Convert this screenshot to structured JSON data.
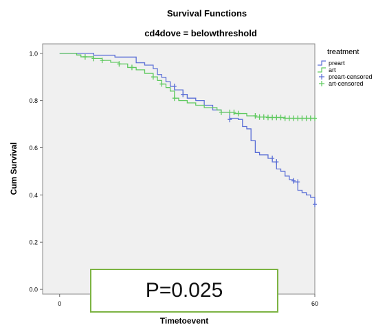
{
  "chart_data": {
    "type": "line",
    "title": "Survival Functions",
    "subtitle": "cd4dove = belowthreshold",
    "xlabel": "Timetoevent",
    "ylabel": "Cum Survival",
    "xlim": [
      -4,
      60
    ],
    "ylim": [
      -0.02,
      1.04
    ],
    "x_ticks": [
      0,
      60
    ],
    "x_tick_labels": [
      "0",
      "60"
    ],
    "y_ticks": [
      0.0,
      0.2,
      0.4,
      0.6,
      0.8,
      1.0
    ],
    "y_tick_labels": [
      "0.0",
      "0.2",
      "0.4",
      "0.6",
      "0.8",
      "1.0"
    ],
    "grid": false,
    "legend_title": "treatment",
    "legend_position": "top-right outside",
    "legend": [
      "preart",
      "art",
      "preart-censored",
      "art-censored"
    ],
    "annotation": "P=0.025",
    "series": [
      {
        "name": "preart",
        "color": "#5b6fd6",
        "steps": [
          [
            0,
            1.0
          ],
          [
            8,
            0.992
          ],
          [
            13,
            0.984
          ],
          [
            18,
            0.96
          ],
          [
            20,
            0.95
          ],
          [
            22,
            0.935
          ],
          [
            23,
            0.91
          ],
          [
            24,
            0.898
          ],
          [
            25,
            0.88
          ],
          [
            26,
            0.86
          ],
          [
            27,
            0.845
          ],
          [
            29,
            0.826
          ],
          [
            30,
            0.81
          ],
          [
            32,
            0.8
          ],
          [
            34,
            0.78
          ],
          [
            36,
            0.76
          ],
          [
            38,
            0.75
          ],
          [
            40,
            0.725
          ],
          [
            42,
            0.72
          ],
          [
            43,
            0.69
          ],
          [
            44,
            0.68
          ],
          [
            45,
            0.63
          ],
          [
            46,
            0.58
          ],
          [
            47,
            0.57
          ],
          [
            49,
            0.555
          ],
          [
            50,
            0.54
          ],
          [
            51,
            0.51
          ],
          [
            52,
            0.5
          ],
          [
            53,
            0.48
          ],
          [
            54,
            0.465
          ],
          [
            55,
            0.455
          ],
          [
            56,
            0.42
          ],
          [
            57,
            0.41
          ],
          [
            58,
            0.4
          ],
          [
            59,
            0.39
          ],
          [
            60,
            0.36
          ]
        ],
        "censored": [
          [
            27,
            0.86
          ],
          [
            29,
            0.826
          ],
          [
            40,
            0.72
          ],
          [
            50,
            0.555
          ],
          [
            51,
            0.54
          ],
          [
            55,
            0.46
          ],
          [
            56,
            0.455
          ],
          [
            60,
            0.36
          ]
        ]
      },
      {
        "name": "art",
        "color": "#5fc95f",
        "steps": [
          [
            0,
            1.0
          ],
          [
            4,
            0.993
          ],
          [
            5,
            0.985
          ],
          [
            8,
            0.978
          ],
          [
            10,
            0.97
          ],
          [
            12,
            0.962
          ],
          [
            14,
            0.955
          ],
          [
            16,
            0.94
          ],
          [
            18,
            0.93
          ],
          [
            20,
            0.915
          ],
          [
            22,
            0.9
          ],
          [
            23,
            0.885
          ],
          [
            24,
            0.87
          ],
          [
            25,
            0.855
          ],
          [
            26,
            0.84
          ],
          [
            27,
            0.81
          ],
          [
            28,
            0.8
          ],
          [
            30,
            0.79
          ],
          [
            32,
            0.78
          ],
          [
            34,
            0.77
          ],
          [
            37,
            0.76
          ],
          [
            38,
            0.75
          ],
          [
            41,
            0.745
          ],
          [
            44,
            0.735
          ],
          [
            46,
            0.73
          ],
          [
            49,
            0.728
          ],
          [
            53,
            0.725
          ]
        ],
        "censored": [
          [
            6,
            0.985
          ],
          [
            8,
            0.978
          ],
          [
            10,
            0.97
          ],
          [
            14,
            0.955
          ],
          [
            17,
            0.94
          ],
          [
            22,
            0.9
          ],
          [
            24,
            0.87
          ],
          [
            27,
            0.81
          ],
          [
            38,
            0.75
          ],
          [
            40,
            0.75
          ],
          [
            41,
            0.75
          ],
          [
            42,
            0.745
          ],
          [
            46,
            0.735
          ],
          [
            47,
            0.73
          ],
          [
            48,
            0.73
          ],
          [
            49,
            0.728
          ],
          [
            50,
            0.728
          ],
          [
            51,
            0.728
          ],
          [
            52,
            0.728
          ],
          [
            53,
            0.725
          ],
          [
            54,
            0.725
          ],
          [
            55,
            0.725
          ],
          [
            56,
            0.725
          ],
          [
            57,
            0.725
          ],
          [
            58,
            0.725
          ],
          [
            59,
            0.725
          ],
          [
            60,
            0.725
          ]
        ]
      }
    ]
  }
}
